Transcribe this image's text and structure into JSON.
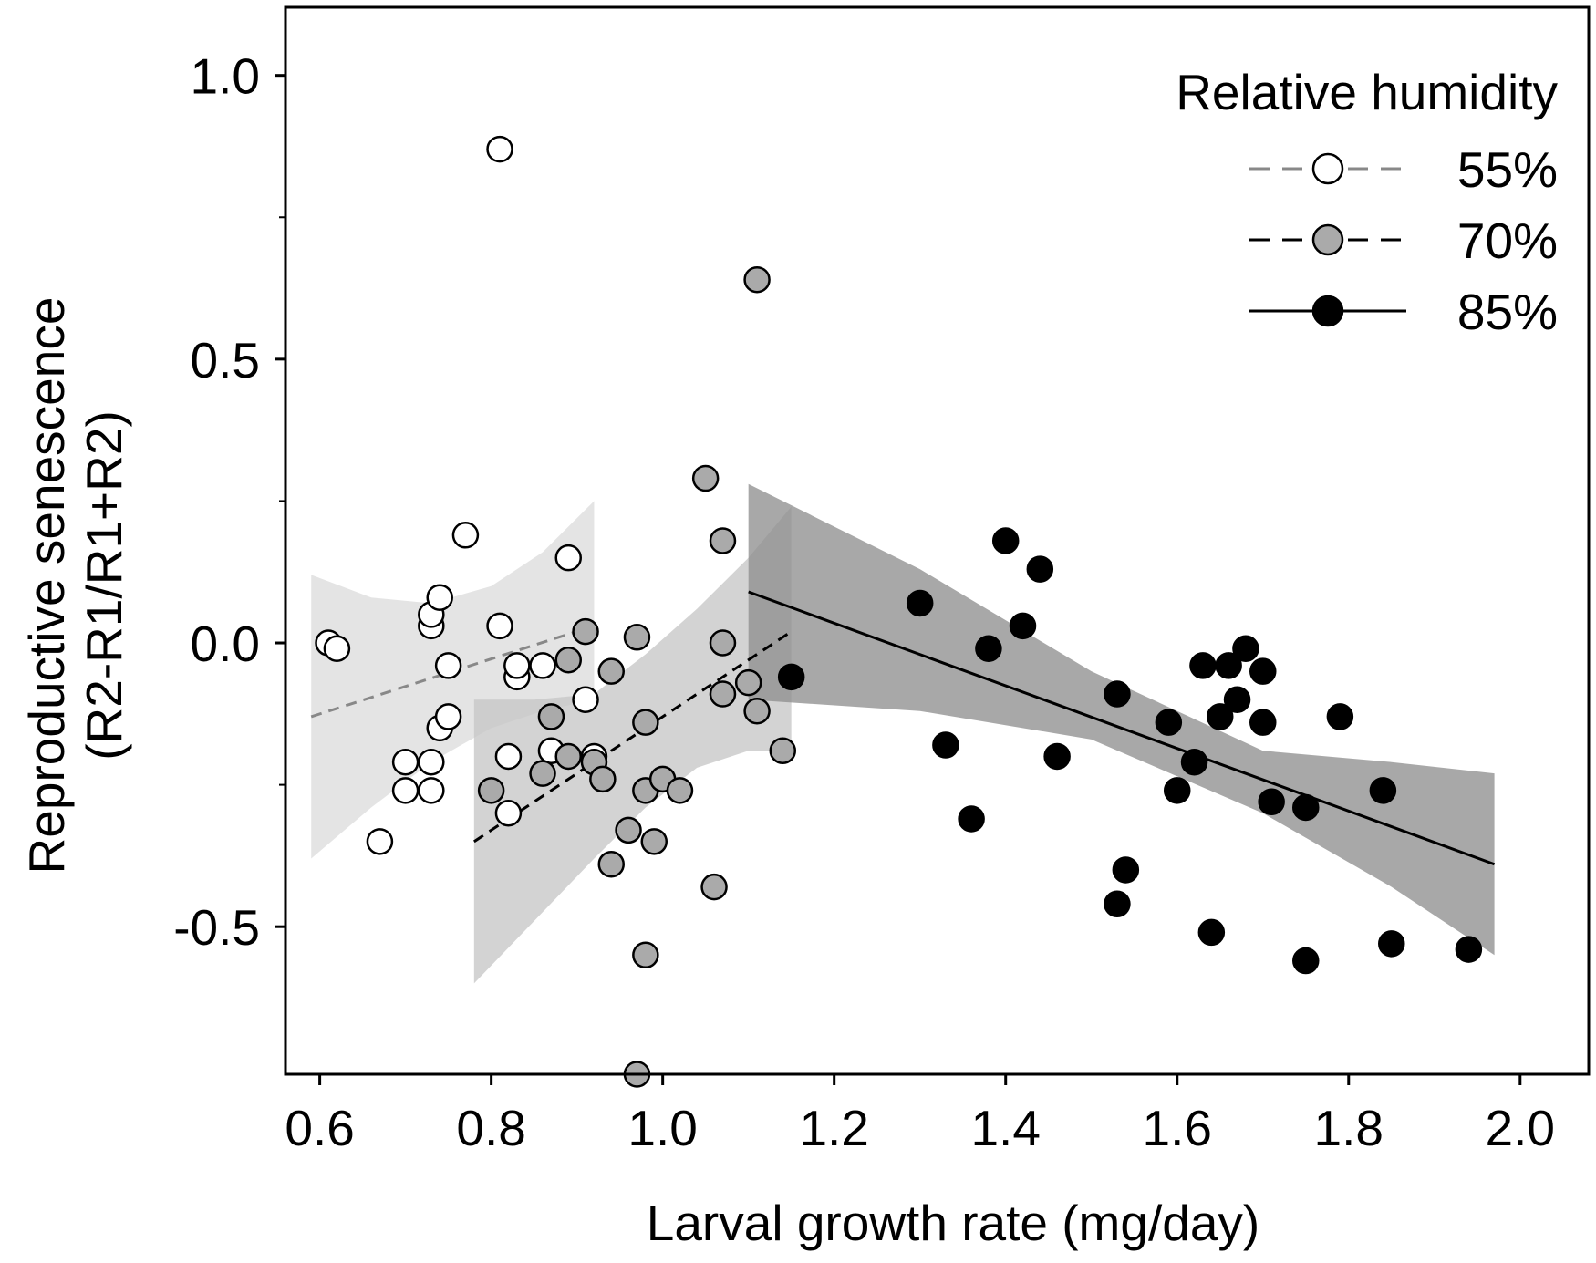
{
  "chart_data": {
    "type": "scatter",
    "xlabel": "Larval growth rate (mg/day)",
    "ylabel": [
      "Reproductive senescence",
      "(R2-R1/R1+R2)"
    ],
    "xlim": [
      0.56,
      2.08
    ],
    "ylim": [
      -0.76,
      1.12
    ],
    "xticks": [
      0.6,
      0.8,
      1.0,
      1.2,
      1.4,
      1.6,
      1.8,
      2.0
    ],
    "xtick_labels": [
      "0.6",
      "0.8",
      "1.0",
      "1.2",
      "1.4",
      "1.6",
      "1.8",
      "2.0"
    ],
    "yticks": [
      1.0,
      0.5,
      0.0,
      -0.5
    ],
    "ytick_labels": [
      "1.0",
      "0.5",
      "0.0",
      "-0.5"
    ],
    "legend": {
      "title": "Relative humidity",
      "position": "top-right"
    },
    "series": [
      {
        "name": "55%",
        "marker_fill": "#ffffff",
        "line_color": "#888888",
        "line_style": "dashed",
        "band_color": "#dcdcdc",
        "fit": {
          "x": [
            0.59,
            0.92
          ],
          "y": [
            -0.13,
            0.03
          ]
        },
        "band": {
          "x": [
            0.59,
            0.66,
            0.73,
            0.8,
            0.86,
            0.92
          ],
          "upper": [
            0.12,
            0.08,
            0.07,
            0.1,
            0.16,
            0.25
          ],
          "lower": [
            -0.38,
            -0.29,
            -0.21,
            -0.15,
            -0.12,
            -0.1
          ]
        },
        "points": [
          [
            0.61,
            0.0
          ],
          [
            0.62,
            -0.01
          ],
          [
            0.67,
            -0.35
          ],
          [
            0.7,
            -0.21
          ],
          [
            0.7,
            -0.26
          ],
          [
            0.73,
            -0.26
          ],
          [
            0.73,
            -0.21
          ],
          [
            0.73,
            0.03
          ],
          [
            0.73,
            0.05
          ],
          [
            0.74,
            0.08
          ],
          [
            0.74,
            -0.15
          ],
          [
            0.75,
            -0.13
          ],
          [
            0.75,
            -0.04
          ],
          [
            0.77,
            0.19
          ],
          [
            0.81,
            0.03
          ],
          [
            0.81,
            0.87
          ],
          [
            0.82,
            -0.2
          ],
          [
            0.82,
            -0.3
          ],
          [
            0.83,
            -0.06
          ],
          [
            0.83,
            -0.04
          ],
          [
            0.86,
            -0.04
          ],
          [
            0.87,
            -0.19
          ],
          [
            0.89,
            0.15
          ],
          [
            0.91,
            -0.1
          ],
          [
            0.92,
            -0.2
          ]
        ]
      },
      {
        "name": "70%",
        "marker_fill": "#aaaaaa",
        "line_color": "#000000",
        "line_style": "dashed",
        "band_color": "#c6c6c6",
        "fit": {
          "x": [
            0.78,
            1.15
          ],
          "y": [
            -0.35,
            0.02
          ]
        },
        "band": {
          "x": [
            0.78,
            0.85,
            0.92,
            0.98,
            1.04,
            1.1,
            1.15
          ],
          "upper": [
            -0.1,
            -0.1,
            -0.09,
            -0.02,
            0.06,
            0.15,
            0.24
          ],
          "lower": [
            -0.6,
            -0.49,
            -0.38,
            -0.29,
            -0.22,
            -0.19,
            -0.19
          ]
        },
        "points": [
          [
            0.8,
            -0.26
          ],
          [
            0.86,
            -0.23
          ],
          [
            0.87,
            -0.13
          ],
          [
            0.89,
            -0.03
          ],
          [
            0.89,
            -0.2
          ],
          [
            0.91,
            0.02
          ],
          [
            0.92,
            -0.21
          ],
          [
            0.93,
            -0.24
          ],
          [
            0.94,
            -0.05
          ],
          [
            0.94,
            -0.39
          ],
          [
            0.96,
            -0.33
          ],
          [
            0.97,
            -0.76
          ],
          [
            0.97,
            0.01
          ],
          [
            0.98,
            -0.26
          ],
          [
            0.98,
            -0.14
          ],
          [
            0.98,
            -0.55
          ],
          [
            0.99,
            -0.35
          ],
          [
            1.0,
            -0.24
          ],
          [
            1.02,
            -0.26
          ],
          [
            1.05,
            0.29
          ],
          [
            1.06,
            -0.43
          ],
          [
            1.07,
            0.18
          ],
          [
            1.07,
            -0.09
          ],
          [
            1.07,
            -0.0
          ],
          [
            1.1,
            -0.07
          ],
          [
            1.11,
            -0.12
          ],
          [
            1.11,
            0.64
          ],
          [
            1.14,
            -0.19
          ]
        ]
      },
      {
        "name": "85%",
        "marker_fill": "#000000",
        "line_color": "#000000",
        "line_style": "solid",
        "band_color": "#8f8f8f",
        "fit": {
          "x": [
            1.1,
            1.97
          ],
          "y": [
            0.09,
            -0.39
          ]
        },
        "band": {
          "x": [
            1.1,
            1.3,
            1.5,
            1.7,
            1.85,
            1.97
          ],
          "upper": [
            0.28,
            0.13,
            -0.05,
            -0.19,
            -0.21,
            -0.23
          ],
          "lower": [
            -0.1,
            -0.12,
            -0.17,
            -0.3,
            -0.43,
            -0.55
          ]
        },
        "points": [
          [
            1.15,
            -0.06
          ],
          [
            1.3,
            0.07
          ],
          [
            1.33,
            -0.18
          ],
          [
            1.36,
            -0.31
          ],
          [
            1.38,
            -0.01
          ],
          [
            1.4,
            0.18
          ],
          [
            1.42,
            0.03
          ],
          [
            1.44,
            0.13
          ],
          [
            1.46,
            -0.2
          ],
          [
            1.53,
            -0.09
          ],
          [
            1.53,
            -0.46
          ],
          [
            1.54,
            -0.4
          ],
          [
            1.59,
            -0.14
          ],
          [
            1.6,
            -0.26
          ],
          [
            1.62,
            -0.21
          ],
          [
            1.63,
            -0.04
          ],
          [
            1.64,
            -0.51
          ],
          [
            1.65,
            -0.13
          ],
          [
            1.66,
            -0.04
          ],
          [
            1.67,
            -0.1
          ],
          [
            1.68,
            -0.01
          ],
          [
            1.7,
            -0.05
          ],
          [
            1.7,
            -0.14
          ],
          [
            1.71,
            -0.28
          ],
          [
            1.75,
            -0.29
          ],
          [
            1.75,
            -0.56
          ],
          [
            1.79,
            -0.13
          ],
          [
            1.84,
            -0.26
          ],
          [
            1.85,
            -0.53
          ],
          [
            1.94,
            -0.54
          ]
        ]
      }
    ]
  }
}
